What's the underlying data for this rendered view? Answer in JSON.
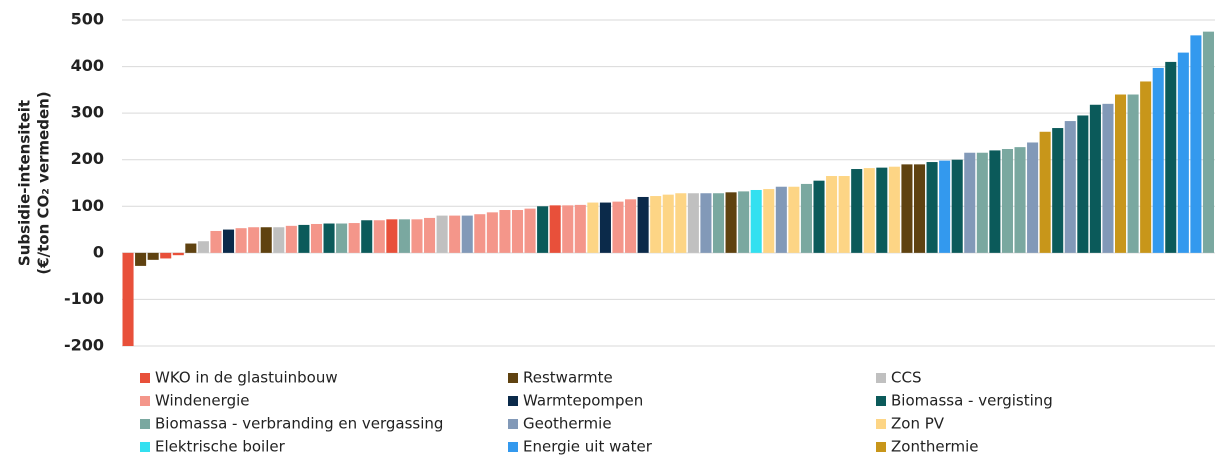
{
  "chart_data": {
    "type": "bar",
    "y_label_lines": [
      "Subsidie-intensiteit",
      "(€/ton CO₂ vermeden)"
    ],
    "values": [
      -200,
      -28,
      -15,
      -12,
      -5,
      20,
      25,
      47,
      50,
      53,
      55,
      55,
      55,
      58,
      60,
      62,
      63,
      63,
      64,
      70,
      70,
      72,
      72,
      72,
      75,
      80,
      80,
      80,
      83,
      87,
      92,
      92,
      95,
      100,
      102,
      102,
      103,
      108,
      108,
      110,
      115,
      120,
      122,
      125,
      128,
      128,
      128,
      128,
      130,
      132,
      135,
      137,
      142,
      142,
      148,
      155,
      165,
      165,
      180,
      182,
      183,
      185,
      190,
      190,
      195,
      198,
      200,
      215,
      215,
      220,
      223,
      227,
      237,
      260,
      268,
      283,
      295,
      318,
      320,
      340,
      340,
      368,
      397,
      410,
      430,
      467,
      475
    ],
    "colors": [
      "#e8503a",
      "#5f4210",
      "#5f4210",
      "#e8503a",
      "#e8503a",
      "#5f4210",
      "#c0c0c0",
      "#f4968a",
      "#0b2a4a",
      "#f4968a",
      "#f4968a",
      "#5f4210",
      "#c0c0c0",
      "#f4968a",
      "#0b5a5a",
      "#f4968a",
      "#0b5a5a",
      "#7aa8a0",
      "#f4968a",
      "#0b5a5a",
      "#f4968a",
      "#e8503a",
      "#7aa8a0",
      "#f4968a",
      "#f4968a",
      "#c0c0c0",
      "#f4968a",
      "#8299b8",
      "#f4968a",
      "#f4968a",
      "#f4968a",
      "#f4968a",
      "#f4968a",
      "#0b5a5a",
      "#e8503a",
      "#f4968a",
      "#f4968a",
      "#fdd585",
      "#0b2a4a",
      "#f4968a",
      "#f4968a",
      "#0b2a4a",
      "#fdd585",
      "#fdd585",
      "#fdd585",
      "#c0c0c0",
      "#8299b8",
      "#7aa8a0",
      "#5f4210",
      "#7aa8a0",
      "#33e0f0",
      "#fdd585",
      "#8299b8",
      "#fdd585",
      "#7aa8a0",
      "#0b5a5a",
      "#fdd585",
      "#fdd585",
      "#0b5a5a",
      "#fdd585",
      "#0b5a5a",
      "#fdd585",
      "#5f4210",
      "#5f4210",
      "#0b5a5a",
      "#3399ee",
      "#0b5a5a",
      "#8299b8",
      "#7aa8a0",
      "#0b5a5a",
      "#7aa8a0",
      "#7aa8a0",
      "#8299b8",
      "#c8961a",
      "#0b5a5a",
      "#8299b8",
      "#0b5a5a",
      "#0b5a5a",
      "#8299b8",
      "#c8961a",
      "#7aa8a0",
      "#c8961a",
      "#3399ee",
      "#0b5a5a",
      "#3399ee",
      "#3399ee",
      "#7aa8a0"
    ],
    "legend": [
      {
        "name": "WKO in de glastuinbouw",
        "color": "#e8503a"
      },
      {
        "name": "Restwarmte",
        "color": "#5f4210"
      },
      {
        "name": "CCS",
        "color": "#c0c0c0"
      },
      {
        "name": "Windenergie",
        "color": "#f4968a"
      },
      {
        "name": "Warmtepompen",
        "color": "#0b2a4a"
      },
      {
        "name": "Biomassa - vergisting",
        "color": "#0b5a5a"
      },
      {
        "name": "Biomassa - verbranding en vergassing",
        "color": "#7aa8a0"
      },
      {
        "name": "Geothermie",
        "color": "#8299b8"
      },
      {
        "name": "Zon PV",
        "color": "#fdd585"
      },
      {
        "name": "Elektrische boiler",
        "color": "#33e0f0"
      },
      {
        "name": "Energie uit water",
        "color": "#3399ee"
      },
      {
        "name": "Zonthermie",
        "color": "#c8961a"
      }
    ],
    "ylim": [
      -200,
      500
    ],
    "yticks": [
      -200,
      -100,
      0,
      100,
      200,
      300,
      400,
      500
    ],
    "grid": true
  }
}
